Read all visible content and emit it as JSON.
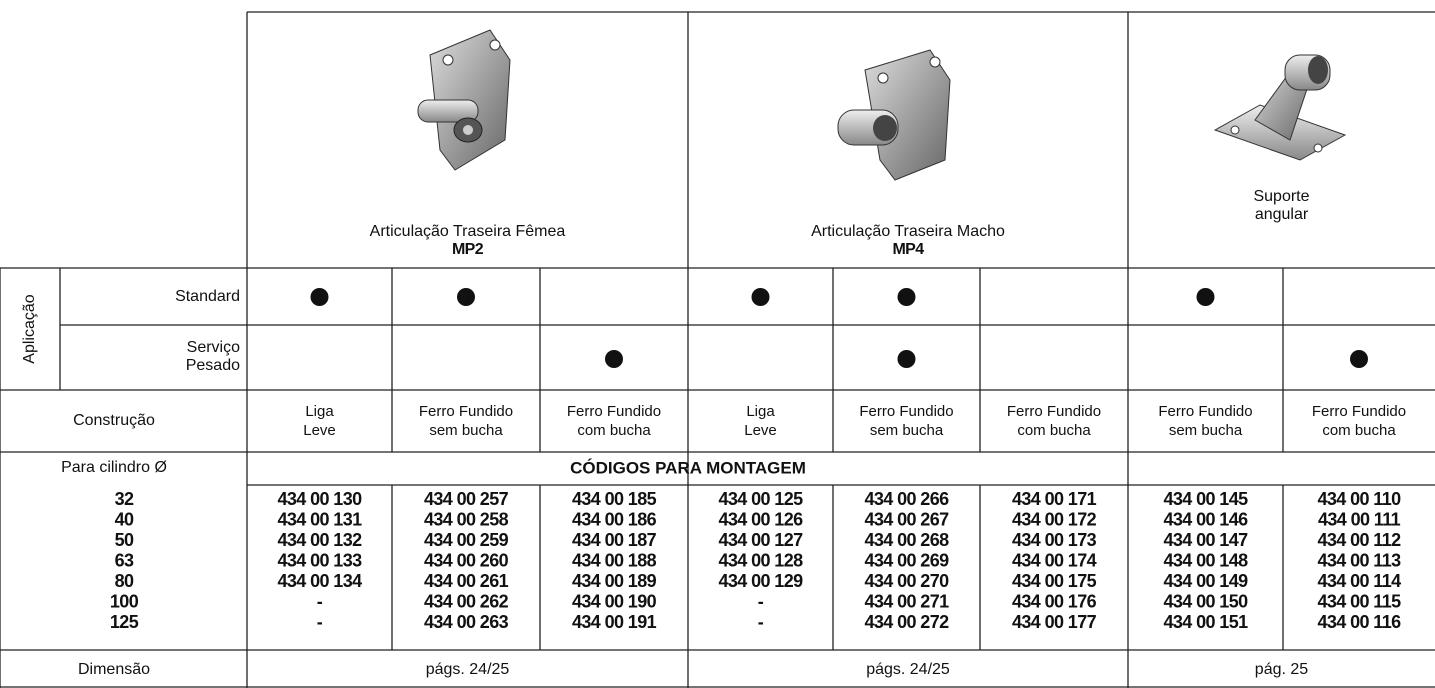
{
  "header": {
    "groups": [
      {
        "title": [
          "Articulação Traseira Fêmea"
        ],
        "code": "MP2"
      },
      {
        "title": [
          "Articulação Traseira Macho"
        ],
        "code": "MP4"
      },
      {
        "title": [
          "Suporte",
          "angular"
        ]
      }
    ]
  },
  "application": {
    "label": "Aplicação",
    "standard": {
      "label": [
        "Standard"
      ],
      "dots": [
        true,
        true,
        false,
        true,
        true,
        false,
        true,
        false
      ]
    },
    "heavy": {
      "label": [
        "Serviço",
        "Pesado"
      ],
      "dots": [
        false,
        false,
        true,
        false,
        true,
        false,
        false,
        true
      ]
    }
  },
  "construction": {
    "label": "Construção",
    "columns": [
      [
        "Liga",
        "Leve"
      ],
      [
        "Ferro Fundido",
        "sem bucha"
      ],
      [
        "Ferro Fundido",
        "com bucha"
      ],
      [
        "Liga",
        "Leve"
      ],
      [
        "Ferro Fundido",
        "sem bucha"
      ],
      [
        "Ferro Fundido",
        "com bucha"
      ],
      [
        "Ferro Fundido",
        "sem bucha"
      ],
      [
        "Ferro Fundido",
        "com bucha"
      ]
    ]
  },
  "codes": {
    "label": "Para cilindro Ø",
    "heading": "CÓDIGOS PARA MONTAGEM",
    "diameters": [
      "32",
      "40",
      "50",
      "63",
      "80",
      "100",
      "125"
    ],
    "columns": [
      [
        "434 00 130",
        "434 00 131",
        "434 00 132",
        "434 00 133",
        "434 00 134",
        "-",
        "-"
      ],
      [
        "434 00 257",
        "434 00 258",
        "434 00 259",
        "434 00 260",
        "434 00 261",
        "434 00 262",
        "434 00 263"
      ],
      [
        "434 00 185",
        "434 00 186",
        "434 00 187",
        "434 00 188",
        "434 00 189",
        "434 00 190",
        "434 00 191"
      ],
      [
        "434 00 125",
        "434 00 126",
        "434 00 127",
        "434 00 128",
        "434 00 129",
        "-",
        "-"
      ],
      [
        "434 00 266",
        "434 00 267",
        "434 00 268",
        "434 00 269",
        "434 00 270",
        "434 00 271",
        "434 00 272"
      ],
      [
        "434 00 171",
        "434 00 172",
        "434 00 173",
        "434 00 174",
        "434 00 175",
        "434 00 176",
        "434 00 177"
      ],
      [
        "434 00 145",
        "434 00 146",
        "434 00 147",
        "434 00 148",
        "434 00 149",
        "434 00 150",
        "434 00 151"
      ],
      [
        "434 00 110",
        "434 00 111",
        "434 00 112",
        "434 00 113",
        "434 00 114",
        "434 00 115",
        "434 00 116"
      ]
    ]
  },
  "dimension": {
    "label": "Dimensão",
    "groups": [
      "págs. 24/25",
      "págs. 24/25",
      "pág. 25"
    ]
  }
}
